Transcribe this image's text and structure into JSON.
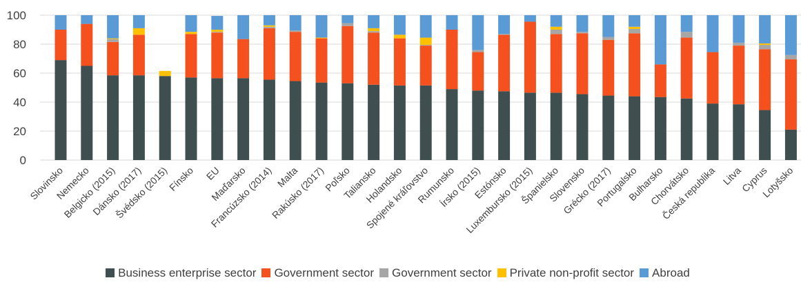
{
  "chart_data": {
    "type": "bar",
    "stacked": true,
    "categories": [
      "Slovinsko",
      "Nemecko",
      "Belgicko (2015)",
      "Dánsko (2017)",
      "Švédsko (2015)",
      "Fínsko",
      "EU",
      "Maďarsko",
      "Francúzsko (2014)",
      "Malta",
      "Rakúsko (2017)",
      "Poľsko",
      "Taliansko",
      "Holandsko",
      "Spojené kráľovstvo",
      "Rumunsko",
      "Írsko (2015)",
      "Estónsko",
      "Luxembursko (2015)",
      "Španielsko",
      "Slovensko",
      "Grécko (2017)",
      "Portugalsko",
      "Bulharsko",
      "Chorvátsko",
      "Česká republika",
      "Litva",
      "Cyprus",
      "Lotyšsko"
    ],
    "series": [
      {
        "name": "Business enterprise sector",
        "color": "#3f4f4f",
        "values": [
          69,
          65,
          58.5,
          58.5,
          58,
          57,
          56.5,
          56.5,
          55.5,
          54.5,
          53.5,
          53,
          52,
          51.5,
          51.5,
          49,
          48,
          47.5,
          46.5,
          46.5,
          45.5,
          44.5,
          44,
          43.5,
          42.5,
          39,
          38.5,
          34.5,
          21
        ]
      },
      {
        "name": "Government sector",
        "color": "#f4511e",
        "values": [
          21,
          29,
          23,
          28,
          0,
          30,
          31.5,
          27,
          35.5,
          34,
          30.5,
          39.5,
          36,
          32.5,
          27.5,
          41,
          26.5,
          39,
          49,
          40.5,
          42,
          38.5,
          43.5,
          22.5,
          42,
          35.5,
          40.5,
          42,
          48.5
        ]
      },
      {
        "name": "Government sector",
        "color": "#a6a6a6",
        "values": [
          0,
          0,
          2,
          0,
          0,
          0,
          0.5,
          0,
          1,
          1,
          0,
          2,
          1,
          0,
          0.5,
          0,
          1.5,
          0.5,
          0,
          3,
          1,
          2,
          3,
          0,
          4,
          0,
          2,
          3,
          3
        ]
      },
      {
        "name": "Private non-profit sector",
        "color": "#ffc000",
        "values": [
          0,
          0,
          0.5,
          4.5,
          3.5,
          1.5,
          1.5,
          0,
          1,
          0,
          0.5,
          0,
          2,
          2.5,
          5,
          0,
          0,
          0,
          0,
          2,
          0,
          0,
          1.5,
          0,
          0,
          0,
          0,
          1,
          0
        ]
      },
      {
        "name": "Abroad",
        "color": "#5b9bd5",
        "values": [
          10,
          6,
          16,
          9,
          0,
          11.5,
          9.5,
          16.5,
          7,
          10.5,
          15.5,
          5.5,
          9,
          13.5,
          15.5,
          10,
          24,
          13,
          4.5,
          8,
          11.5,
          15,
          8,
          34,
          11.5,
          25.5,
          19,
          19.5,
          27.5
        ]
      }
    ],
    "ylim": [
      0,
      100
    ],
    "yticks": [
      0,
      20,
      40,
      60,
      80,
      100
    ],
    "grid": true,
    "legend_position": "bottom"
  }
}
